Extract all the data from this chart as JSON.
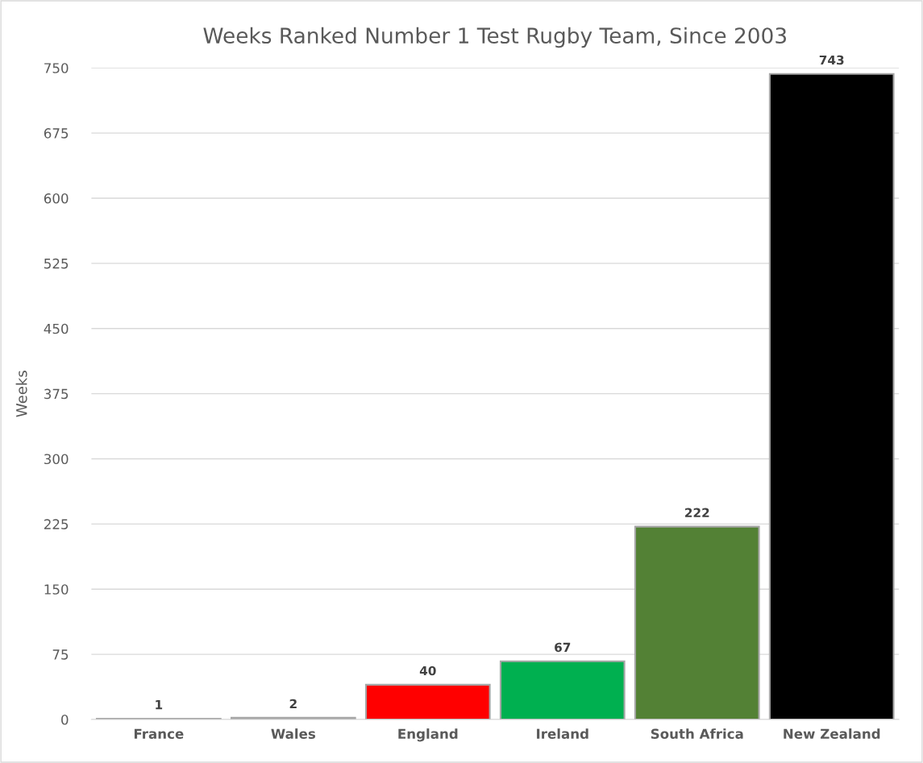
{
  "chart_data": {
    "type": "bar",
    "title": "Weeks Ranked Number 1 Test Rugby Team, Since 2003",
    "ylabel": "Weeks",
    "categories": [
      "France",
      "Wales",
      "England",
      "Ireland",
      "South Africa",
      "New Zealand"
    ],
    "values": [
      1,
      2,
      40,
      67,
      222,
      743
    ],
    "colors": [
      "#a6a6a6",
      "#a6a6a6",
      "#ff0000",
      "#00b050",
      "#538135",
      "#000000"
    ],
    "ylim": [
      0,
      750
    ],
    "yticks": [
      0,
      75,
      150,
      225,
      300,
      375,
      450,
      525,
      600,
      675,
      750
    ],
    "grid": "y",
    "data_labels": true
  }
}
